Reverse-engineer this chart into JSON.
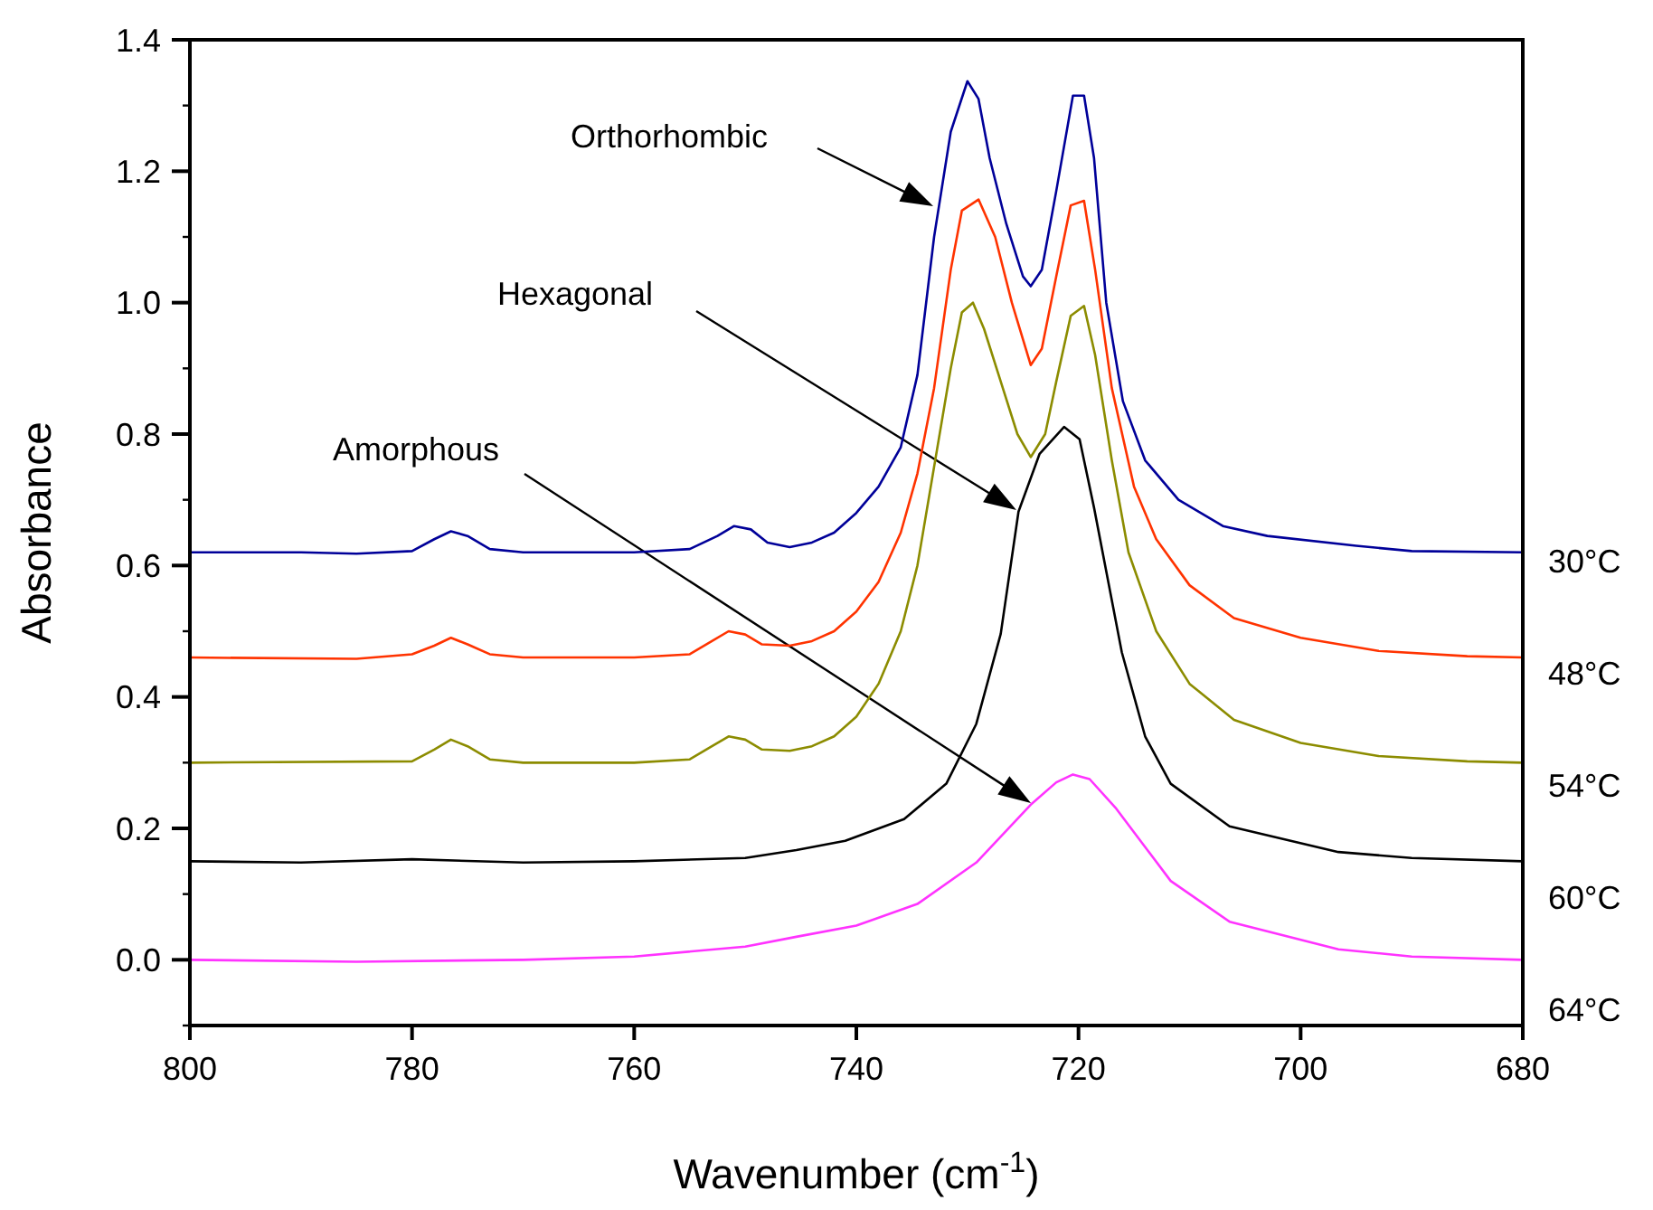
{
  "chart_data": {
    "type": "line",
    "xlabel": "Wavenumber (cm$^{-1}$)",
    "ylabel": "Absorbance",
    "xlim": [
      800,
      680
    ],
    "xticks": [
      800,
      780,
      760,
      740,
      720,
      700,
      680
    ],
    "ylim": [
      -0.1,
      1.4
    ],
    "yticks": [
      {
        "value": -0.1,
        "label": null
      },
      "0.0",
      {
        "value": 0.1,
        "label": null
      },
      0.2,
      {
        "value": 0.3,
        "label": null
      },
      0.4,
      {
        "value": 0.5,
        "label": null
      },
      0.6,
      {
        "value": 0.7,
        "label": null
      },
      0.8,
      {
        "value": 0.9,
        "label": null
      },
      "1.0",
      {
        "value": 1.1,
        "label": null
      },
      1.2,
      {
        "value": 1.3,
        "label": null
      },
      1.4
    ],
    "series": [
      {
        "name": "30°C",
        "color": "#000099",
        "x": [
          800,
          790,
          785,
          780,
          778,
          776.5,
          775,
          773,
          770,
          760,
          755,
          752.5,
          751,
          749.5,
          748,
          746,
          744,
          742,
          740,
          738,
          736,
          734.5,
          733,
          731.5,
          730,
          729,
          728,
          726.5,
          725,
          724.3,
          723.3,
          722,
          720.5,
          719.5,
          718.6,
          717.5,
          716,
          714,
          711,
          707,
          703,
          695,
          690,
          680
        ],
        "values": [
          0.62,
          0.62,
          0.618,
          0.622,
          0.64,
          0.652,
          0.645,
          0.625,
          0.62,
          0.62,
          0.625,
          0.645,
          0.66,
          0.655,
          0.635,
          0.628,
          0.635,
          0.65,
          0.68,
          0.72,
          0.78,
          0.89,
          1.1,
          1.26,
          1.337,
          1.31,
          1.22,
          1.12,
          1.04,
          1.025,
          1.05,
          1.17,
          1.315,
          1.315,
          1.22,
          1.0,
          0.85,
          0.76,
          0.7,
          0.66,
          0.645,
          0.63,
          0.622,
          0.62
        ]
      },
      {
        "name": "48°C",
        "color": "#ff3300",
        "x": [
          800,
          785,
          780,
          778,
          776.5,
          775,
          773,
          770,
          760,
          755,
          753,
          751.5,
          750,
          748.5,
          746,
          744,
          742,
          740,
          738,
          736,
          734.5,
          733,
          731.5,
          730.5,
          729,
          727.5,
          726,
          724.3,
          723.3,
          722,
          720.7,
          719.5,
          718.5,
          717,
          715,
          713,
          710,
          706,
          700,
          693,
          685,
          680
        ],
        "values": [
          0.46,
          0.458,
          0.465,
          0.478,
          0.49,
          0.48,
          0.465,
          0.46,
          0.46,
          0.465,
          0.485,
          0.5,
          0.495,
          0.48,
          0.478,
          0.485,
          0.5,
          0.53,
          0.575,
          0.65,
          0.74,
          0.87,
          1.05,
          1.14,
          1.157,
          1.1,
          1.0,
          0.905,
          0.93,
          1.04,
          1.148,
          1.155,
          1.05,
          0.87,
          0.72,
          0.64,
          0.57,
          0.52,
          0.49,
          0.47,
          0.462,
          0.46
        ]
      },
      {
        "name": "54°C",
        "color": "#8c8c00",
        "x": [
          800,
          780,
          778,
          776.5,
          775,
          773,
          770,
          760,
          755,
          753,
          751.5,
          750,
          748.5,
          746,
          744,
          742,
          740,
          738,
          736,
          734.5,
          733,
          731.5,
          730.5,
          729.5,
          728.5,
          727,
          725.5,
          724.3,
          723,
          722,
          720.7,
          719.5,
          718.5,
          717,
          715.5,
          713,
          710,
          706,
          700,
          693,
          685,
          680
        ],
        "values": [
          0.3,
          0.302,
          0.32,
          0.335,
          0.325,
          0.305,
          0.3,
          0.3,
          0.305,
          0.325,
          0.34,
          0.335,
          0.32,
          0.318,
          0.325,
          0.34,
          0.37,
          0.42,
          0.5,
          0.6,
          0.75,
          0.9,
          0.985,
          1.0,
          0.96,
          0.88,
          0.8,
          0.765,
          0.8,
          0.88,
          0.98,
          0.995,
          0.92,
          0.76,
          0.62,
          0.5,
          0.42,
          0.365,
          0.33,
          0.31,
          0.302,
          0.3
        ]
      },
      {
        "name": "60°C",
        "color": "#000000",
        "x": [
          800,
          790,
          780,
          770,
          760,
          750,
          745.4,
          741,
          735.7,
          731.9,
          729.2,
          727,
          725.4,
          723.5,
          721.3,
          719.9,
          718.6,
          716.1,
          714,
          711.7,
          706.4,
          696.6,
          690,
          680
        ],
        "values": [
          0.15,
          0.148,
          0.153,
          0.148,
          0.15,
          0.155,
          0.167,
          0.181,
          0.214,
          0.268,
          0.359,
          0.496,
          0.682,
          0.77,
          0.811,
          0.792,
          0.688,
          0.468,
          0.34,
          0.268,
          0.203,
          0.164,
          0.155,
          0.15
        ]
      },
      {
        "name": "64°C",
        "color": "#ff33ff",
        "x": [
          800,
          785,
          770,
          760,
          750,
          745.4,
          740,
          734.5,
          729.2,
          724.3,
          722,
          720.5,
          719,
          716.6,
          711.7,
          706.4,
          696.6,
          690,
          680
        ],
        "values": [
          0.0,
          -0.003,
          0.0,
          0.005,
          0.02,
          0.035,
          0.052,
          0.085,
          0.148,
          0.236,
          0.27,
          0.282,
          0.275,
          0.23,
          0.12,
          0.058,
          0.016,
          0.005,
          0.0
        ]
      }
    ],
    "annotations": [
      "Orthorhombic",
      "Hexagonal",
      "Amorphous"
    ]
  }
}
